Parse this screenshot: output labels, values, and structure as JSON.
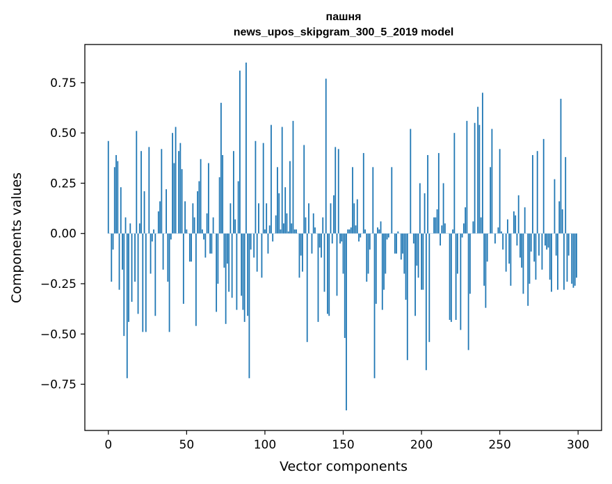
{
  "chart_data": {
    "type": "bar",
    "title_line1": "пашня",
    "title_line2": "news_upos_skipgram_300_5_2019 model",
    "xlabel": "Vector components",
    "ylabel": "Components values",
    "xlim": [
      -15,
      315
    ],
    "ylim": [
      -0.98,
      0.94
    ],
    "xticks": [
      0,
      50,
      100,
      150,
      200,
      250,
      300
    ],
    "xtick_labels": [
      "0",
      "50",
      "100",
      "150",
      "200",
      "250",
      "300"
    ],
    "yticks": [
      -0.75,
      -0.5,
      -0.25,
      0.0,
      0.25,
      0.5,
      0.75
    ],
    "ytick_labels": [
      "−0.75",
      "−0.50",
      "−0.25",
      "0.00",
      "0.25",
      "0.50",
      "0.75"
    ],
    "bar_color": "#1f77b4",
    "grid": false,
    "values": [
      0.46,
      0.0,
      -0.24,
      -0.08,
      0.33,
      0.39,
      0.36,
      -0.28,
      0.23,
      -0.18,
      -0.51,
      0.08,
      -0.72,
      -0.44,
      0.05,
      -0.34,
      0.0,
      -0.24,
      0.51,
      -0.4,
      0.05,
      0.41,
      -0.49,
      0.21,
      -0.49,
      0.0,
      0.43,
      -0.2,
      -0.04,
      0.02,
      -0.41,
      0.0,
      0.11,
      0.16,
      0.42,
      -0.18,
      0.0,
      0.22,
      -0.24,
      -0.49,
      -0.03,
      0.5,
      0.35,
      0.53,
      0.0,
      0.41,
      0.45,
      0.32,
      -0.35,
      0.16,
      0.02,
      0.0,
      -0.14,
      -0.14,
      0.15,
      0.08,
      -0.46,
      0.21,
      0.26,
      0.37,
      0.02,
      -0.03,
      -0.12,
      0.1,
      0.35,
      -0.1,
      -0.1,
      0.08,
      0.0,
      -0.39,
      -0.25,
      0.28,
      0.65,
      0.39,
      -0.17,
      -0.45,
      -0.15,
      -0.29,
      0.15,
      -0.32,
      0.41,
      0.07,
      -0.38,
      0.26,
      0.81,
      -0.31,
      -0.38,
      -0.44,
      0.85,
      -0.41,
      -0.72,
      -0.08,
      0.0,
      -0.12,
      0.46,
      -0.19,
      0.15,
      0.0,
      -0.22,
      0.45,
      0.02,
      0.15,
      -0.1,
      0.04,
      0.54,
      -0.04,
      0.0,
      0.09,
      0.33,
      0.2,
      0.02,
      0.53,
      0.05,
      0.23,
      0.1,
      0.01,
      0.36,
      0.05,
      0.56,
      0.02,
      0.02,
      0.0,
      -0.22,
      -0.11,
      -0.19,
      0.44,
      0.08,
      -0.54,
      0.15,
      0.0,
      -0.1,
      0.1,
      0.03,
      0.0,
      -0.44,
      -0.07,
      -0.12,
      0.08,
      -0.29,
      0.77,
      -0.4,
      -0.41,
      0.15,
      -0.05,
      0.19,
      0.43,
      -0.31,
      0.42,
      -0.05,
      -0.04,
      -0.2,
      -0.52,
      -0.88,
      0.02,
      0.02,
      0.03,
      0.33,
      0.15,
      0.04,
      0.17,
      -0.04,
      -0.02,
      0.0,
      0.4,
      0.02,
      -0.24,
      -0.2,
      -0.08,
      0.0,
      0.33,
      -0.72,
      -0.35,
      0.03,
      0.02,
      0.06,
      -0.38,
      -0.28,
      -0.2,
      -0.03,
      -0.02,
      0.0,
      0.33,
      0.0,
      -0.1,
      -0.1,
      0.01,
      0.0,
      -0.13,
      -0.1,
      -0.2,
      -0.33,
      -0.63,
      0.0,
      0.52,
      0.0,
      -0.05,
      -0.41,
      -0.16,
      -0.22,
      0.25,
      -0.28,
      -0.28,
      0.2,
      -0.68,
      0.39,
      -0.54,
      0.0,
      0.0,
      0.08,
      0.08,
      0.12,
      0.4,
      -0.06,
      0.04,
      0.25,
      0.05,
      0.0,
      0.0,
      -0.43,
      -0.44,
      0.02,
      0.5,
      -0.43,
      -0.2,
      0.0,
      -0.48,
      -0.02,
      0.05,
      0.13,
      0.56,
      -0.58,
      -0.3,
      0.0,
      0.06,
      0.55,
      0.0,
      0.63,
      0.54,
      0.08,
      0.7,
      -0.26,
      -0.37,
      -0.14,
      0.0,
      0.33,
      0.52,
      0.0,
      -0.05,
      0.0,
      0.03,
      0.42,
      0.01,
      -0.08,
      0.0,
      -0.19,
      0.07,
      -0.15,
      -0.26,
      0.0,
      0.11,
      0.09,
      -0.06,
      0.19,
      -0.12,
      -0.17,
      -0.3,
      0.13,
      0.0,
      -0.36,
      -0.25,
      -0.09,
      0.39,
      -0.14,
      -0.23,
      0.41,
      -0.11,
      0.0,
      -0.18,
      0.47,
      -0.06,
      -0.08,
      -0.07,
      -0.23,
      -0.29,
      0.0,
      0.27,
      -0.11,
      -0.28,
      0.16,
      0.67,
      0.12,
      -0.28,
      0.38,
      -0.24,
      -0.11,
      0.0,
      -0.25,
      -0.27,
      -0.26,
      -0.22
    ]
  }
}
